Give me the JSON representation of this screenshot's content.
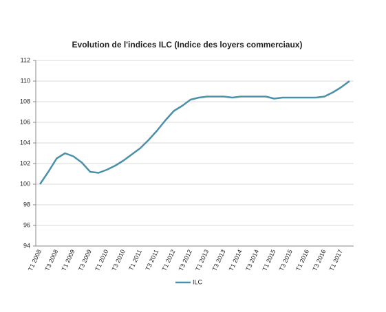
{
  "chart_data": {
    "type": "line",
    "title": "Evolution de l'indices ILC (Indice des loyers commerciaux)",
    "categories": [
      "T1 2008",
      null,
      "T3 2008",
      null,
      "T1 2009",
      null,
      "T3 2009",
      null,
      "T1 2010",
      null,
      "T3 2010",
      null,
      "T1 2011",
      null,
      "T3 2011",
      null,
      "T1 2012",
      null,
      "T3 2012",
      null,
      "T1 2013",
      null,
      "T3 2013",
      null,
      "T1 2014",
      null,
      "T3 2014",
      null,
      "T1 2015",
      null,
      "T3 2015",
      null,
      "T1 2016",
      null,
      "T3 2016",
      null,
      "T1 2017",
      null
    ],
    "series": [
      {
        "name": "ILC",
        "color": "#4a90a8",
        "values": [
          100,
          101.2,
          102.5,
          103.0,
          102.7,
          102.1,
          101.2,
          101.1,
          101.4,
          101.8,
          102.3,
          102.9,
          103.5,
          104.3,
          105.2,
          106.2,
          107.1,
          107.6,
          108.2,
          108.4,
          108.5,
          108.5,
          108.5,
          108.4,
          108.5,
          108.5,
          108.5,
          108.5,
          108.3,
          108.4,
          108.4,
          108.4,
          108.4,
          108.4,
          108.5,
          108.9,
          109.4,
          110.0
        ]
      }
    ],
    "ylim": [
      94,
      112
    ],
    "yticks": [
      94,
      96,
      98,
      100,
      102,
      104,
      106,
      108,
      110,
      112
    ],
    "grid": true,
    "legend": "bottom"
  }
}
